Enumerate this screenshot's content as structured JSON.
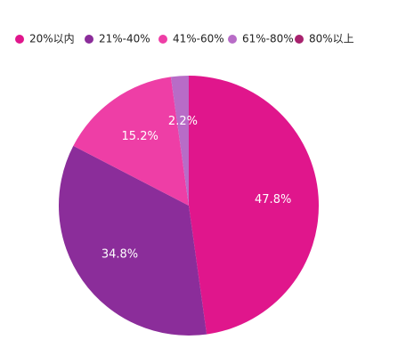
{
  "chart_data": {
    "type": "pie",
    "categories": [
      "20%以内",
      "21%-40%",
      "41%-60%",
      "61%-80%",
      "80%以上"
    ],
    "values": [
      47.8,
      34.8,
      15.2,
      2.2,
      0
    ],
    "value_labels": [
      "47.8%",
      "34.8%",
      "15.2%",
      "2.2%",
      null
    ],
    "colors": [
      "#e0168c",
      "#8b2d9a",
      "#ee3ea6",
      "#b86cc7",
      "#a8226e"
    ],
    "legend": "top"
  }
}
